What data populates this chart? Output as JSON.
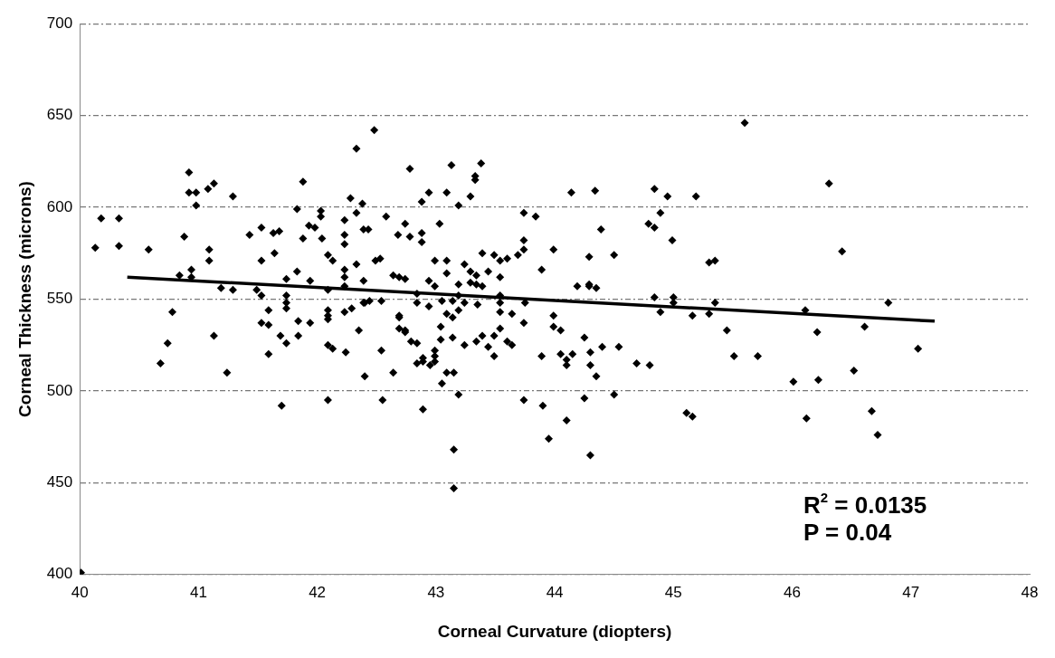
{
  "chart_data": {
    "type": "scatter",
    "xlabel": "Corneal Curvature (diopters)",
    "ylabel": "Corneal Thickness (microns)",
    "xlim": [
      40,
      48
    ],
    "xticks": [
      40,
      41,
      42,
      43,
      44,
      45,
      46,
      47,
      48
    ],
    "ylim": [
      400,
      700
    ],
    "yticks": [
      400,
      450,
      500,
      550,
      600,
      650,
      700
    ],
    "grid": "y",
    "legend": false,
    "annotations": [
      "R$^{2}$ = 0.0135",
      "P = 0.04"
    ],
    "series": [
      {
        "marker": "diamond",
        "color": "#000000",
        "x": [
          40.13,
          40.18,
          40.33,
          40.33,
          40.58,
          40.78,
          40.84,
          40.88,
          40.92,
          40.92,
          40.98,
          40.98,
          40.94,
          40.94,
          41.08,
          41.13,
          41.09,
          41.09,
          41.19,
          41.29,
          41.29,
          41.43,
          41.49,
          41.53,
          41.53,
          41.53,
          41.59,
          41.63,
          41.68,
          41.64,
          41.74,
          41.74,
          41.74,
          41.74,
          41.83,
          41.83,
          41.88,
          41.88,
          41.93,
          41.98,
          41.94,
          42.03,
          42.03,
          42.04,
          42.09,
          42.13,
          42.09,
          42.09,
          42.09,
          42.23,
          42.23,
          42.23,
          42.23,
          42.23,
          42.23,
          42.23,
          42.29,
          42.28,
          42.33,
          42.33,
          42.33,
          42.38,
          42.39,
          42.39,
          42.39,
          42.48,
          42.78,
          43.13,
          43.38,
          43.33,
          43.33,
          42.88,
          42.94,
          43.09,
          43.19,
          43.29,
          44.14,
          44.34,
          44.84,
          44.95,
          45.19,
          42.58,
          42.74,
          43.03,
          42.68,
          42.78,
          42.88,
          42.88,
          42.43,
          43.74,
          43.84,
          44.39,
          44.79,
          44.84,
          44.89,
          44.99,
          43.74,
          43.74,
          43.99,
          44.29,
          44.5,
          42.49,
          42.53,
          42.99,
          43.09,
          43.09,
          43.24,
          43.39,
          43.49,
          43.54,
          43.6,
          43.69,
          43.89,
          42.64,
          42.69,
          42.74,
          42.94,
          42.99,
          43.29,
          43.34,
          43.44,
          43.54,
          43.19,
          43.29,
          43.34,
          43.39,
          44.19,
          44.29,
          44.29,
          44.35,
          44.84,
          45.0,
          42.4,
          42.44,
          42.54,
          42.84,
          42.84,
          42.94,
          43.05,
          43.14,
          43.19,
          43.24,
          43.35,
          43.54,
          43.54,
          43.75,
          44.89,
          45.0,
          45.16,
          42.69,
          43.09,
          43.19,
          43.54,
          43.64,
          43.99,
          45.6,
          46.31,
          46.42,
          45.3,
          45.35,
          45.35,
          45.3,
          46.11,
          46.81,
          42.35,
          42.54,
          42.4,
          42.64,
          42.55,
          42.69,
          42.69,
          42.74,
          42.74,
          42.79,
          42.84,
          42.84,
          42.89,
          42.89,
          42.95,
          42.99,
          42.99,
          42.99,
          43.04,
          43.04,
          43.14,
          43.14,
          43.09,
          43.15,
          43.05,
          43.19,
          42.89,
          43.15,
          43.15,
          43.24,
          43.34,
          43.39,
          43.44,
          43.49,
          43.49,
          43.54,
          43.6,
          43.64,
          43.74,
          43.89,
          43.99,
          44.05,
          44.05,
          44.15,
          44.1,
          44.1,
          44.25,
          44.3,
          44.3,
          44.35,
          44.4,
          44.54,
          44.69,
          44.8,
          43.74,
          43.9,
          44.1,
          43.95,
          44.3,
          44.25,
          44.5,
          45.11,
          45.16,
          45.45,
          45.51,
          45.71,
          46.01,
          46.22,
          46.21,
          46.52,
          46.61,
          47.06,
          46.12,
          46.67,
          46.72,
          40.74,
          40.68,
          41.13,
          41.24,
          41.53,
          41.59,
          41.59,
          41.69,
          41.74,
          41.84,
          41.84,
          41.94,
          42.09,
          42.13,
          42.09,
          42.24,
          41.7,
          42.09,
          40.01
        ],
        "values": [
          578,
          594,
          594,
          579,
          577,
          543,
          563,
          584,
          619,
          608,
          608,
          601,
          566,
          562,
          610,
          613,
          577,
          571,
          556,
          606,
          555,
          585,
          555,
          589,
          571,
          552,
          544,
          586,
          587,
          575,
          561,
          552,
          548,
          545,
          599,
          565,
          614,
          583,
          590,
          589,
          560,
          598,
          595,
          583,
          574,
          571,
          555,
          544,
          541,
          593,
          585,
          580,
          566,
          562,
          557,
          543,
          545,
          605,
          632,
          597,
          569,
          602,
          588,
          560,
          548,
          642,
          621,
          623,
          624,
          617,
          615,
          603,
          608,
          608,
          601,
          606,
          608,
          609,
          610,
          606,
          606,
          595,
          591,
          591,
          585,
          584,
          586,
          581,
          588,
          597,
          595,
          588,
          591,
          589,
          597,
          582,
          582,
          577,
          577,
          573,
          574,
          571,
          572,
          571,
          571,
          564,
          569,
          575,
          574,
          571,
          572,
          574,
          566,
          563,
          562,
          561,
          560,
          557,
          565,
          563,
          565,
          562,
          558,
          559,
          558,
          557,
          557,
          558,
          557,
          556,
          551,
          551,
          548,
          549,
          549,
          553,
          548,
          546,
          549,
          549,
          552,
          548,
          547,
          552,
          548,
          548,
          543,
          548,
          541,
          541,
          542,
          544,
          543,
          542,
          541,
          646,
          613,
          576,
          570,
          571,
          548,
          542,
          544,
          548,
          533,
          522,
          508,
          510,
          495,
          540,
          534,
          533,
          532,
          527,
          526,
          515,
          518,
          516,
          514,
          522,
          519,
          516,
          535,
          528,
          540,
          529,
          510,
          510,
          504,
          498,
          490,
          468,
          447,
          525,
          527,
          530,
          524,
          530,
          519,
          534,
          527,
          525,
          537,
          519,
          535,
          533,
          520,
          520,
          517,
          514,
          529,
          521,
          514,
          508,
          524,
          524,
          515,
          514,
          495,
          492,
          484,
          474,
          465,
          496,
          498,
          488,
          486,
          533,
          519,
          519,
          505,
          506,
          532,
          511,
          535,
          523,
          485,
          489,
          476,
          526,
          515,
          530,
          510,
          537,
          536,
          520,
          530,
          526,
          538,
          530,
          537,
          525,
          523,
          539,
          521,
          492,
          495,
          401
        ]
      },
      {
        "type": "line",
        "marker": "none",
        "color": "#000000",
        "x": [
          40.4,
          47.2
        ],
        "values": [
          562,
          538
        ]
      }
    ]
  }
}
